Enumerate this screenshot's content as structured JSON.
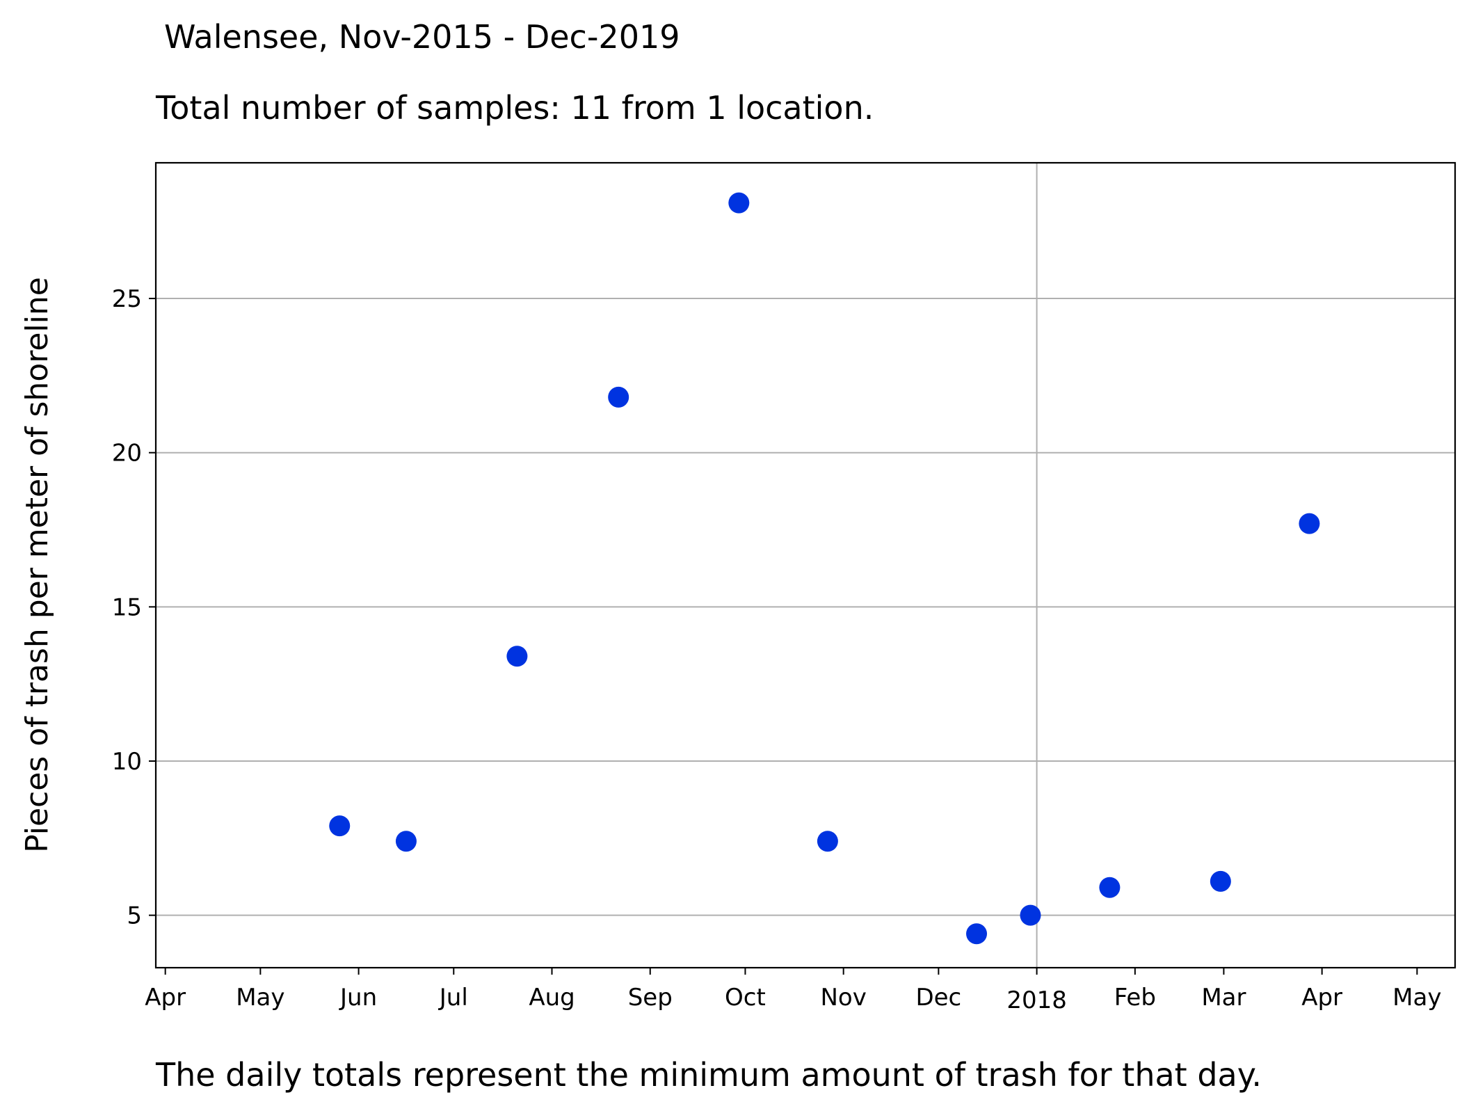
{
  "chart_data": {
    "type": "scatter",
    "title": "Walensee, Nov-2015 - Dec-2019",
    "subtitle": "Total number of samples: 11 from 1 location.",
    "footnote": "The daily totals represent the minimum amount of trash for that day.",
    "xlabel": "",
    "ylabel": "Pieces of trash per meter of shoreline",
    "x_type": "date",
    "xlim": [
      "2017-03-29",
      "2018-05-13"
    ],
    "ylim": [
      3.3,
      29.4
    ],
    "x_ticks": [
      {
        "date": "2017-04-01",
        "label": "Apr"
      },
      {
        "date": "2017-05-01",
        "label": "May"
      },
      {
        "date": "2017-06-01",
        "label": "Jun"
      },
      {
        "date": "2017-07-01",
        "label": "Jul"
      },
      {
        "date": "2017-08-01",
        "label": "Aug"
      },
      {
        "date": "2017-09-01",
        "label": "Sep"
      },
      {
        "date": "2017-10-01",
        "label": "Oct"
      },
      {
        "date": "2017-11-01",
        "label": "Nov"
      },
      {
        "date": "2017-12-01",
        "label": "Dec"
      },
      {
        "date": "2018-01-01",
        "label": "2018"
      },
      {
        "date": "2018-02-01",
        "label": "Feb"
      },
      {
        "date": "2018-03-01",
        "label": "Mar"
      },
      {
        "date": "2018-04-01",
        "label": "Apr"
      },
      {
        "date": "2018-05-01",
        "label": "May"
      }
    ],
    "y_ticks": [
      5,
      10,
      15,
      20,
      25
    ],
    "grid": true,
    "grid_x_lines": [
      "2018-01-01"
    ],
    "marker_color": "#0033e0",
    "points": [
      {
        "x": "2017-05-26",
        "y": 7.9
      },
      {
        "x": "2017-06-16",
        "y": 7.4
      },
      {
        "x": "2017-07-21",
        "y": 13.4
      },
      {
        "x": "2017-08-22",
        "y": 21.8
      },
      {
        "x": "2017-09-29",
        "y": 28.1
      },
      {
        "x": "2017-10-27",
        "y": 7.4
      },
      {
        "x": "2017-12-13",
        "y": 4.4
      },
      {
        "x": "2017-12-30",
        "y": 5.0
      },
      {
        "x": "2018-01-24",
        "y": 5.9
      },
      {
        "x": "2018-02-28",
        "y": 6.1
      },
      {
        "x": "2018-03-28",
        "y": 17.7
      }
    ]
  }
}
